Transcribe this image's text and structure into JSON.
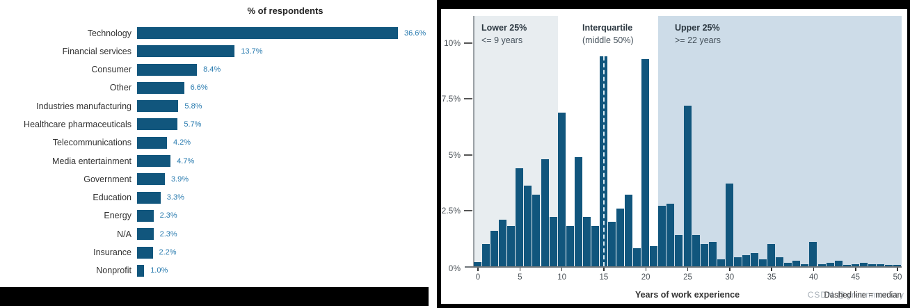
{
  "colors": {
    "bar": "#11567d",
    "value_label": "#2679ae",
    "lower_region": "#e8edf0",
    "middle_region": "#ffffff",
    "upper_region": "#cddce8",
    "median_dash": "#d8eaf3",
    "panel_border": "#000000"
  },
  "chart_data": [
    {
      "id": "industry-respondents",
      "type": "bar",
      "orientation": "horizontal",
      "title": "% of respondents",
      "unit": "%",
      "grid": false,
      "xlim": [
        0,
        40
      ],
      "categories": [
        "Technology",
        "Financial services",
        "Consumer",
        "Other",
        "Industries manufacturing",
        "Healthcare pharmaceuticals",
        "Telecommunications",
        "Media entertainment",
        "Government",
        "Education",
        "Energy",
        "N/A",
        "Insurance",
        "Nonprofit"
      ],
      "values": [
        36.6,
        13.7,
        8.4,
        6.6,
        5.8,
        5.7,
        4.2,
        4.7,
        3.9,
        3.3,
        2.3,
        2.3,
        2.2,
        1.0
      ],
      "value_labels": [
        "36.6%",
        "13.7%",
        "8.4%",
        "6.6%",
        "5.8%",
        "5.7%",
        "4.2%",
        "4.7%",
        "3.9%",
        "3.3%",
        "2.3%",
        "2.3%",
        "2.2%",
        "1.0%"
      ]
    },
    {
      "id": "work-experience-distribution",
      "type": "bar",
      "subtype": "histogram",
      "xlabel": "Years of work experience",
      "ylabel": "",
      "ylim": [
        0,
        11.2
      ],
      "xlim": [
        0,
        50
      ],
      "grid": false,
      "y_ticks": [
        {
          "label": "10%",
          "value": 10
        },
        {
          "label": "7.5%",
          "value": 7.5
        },
        {
          "label": "5%",
          "value": 5
        },
        {
          "label": "2.5%",
          "value": 2.5
        },
        {
          "label": "0%",
          "value": 0
        }
      ],
      "x_ticks": [
        0,
        5,
        10,
        15,
        20,
        25,
        30,
        35,
        40,
        45,
        50
      ],
      "x": [
        0,
        1,
        2,
        3,
        4,
        5,
        6,
        7,
        8,
        9,
        10,
        11,
        12,
        13,
        14,
        15,
        16,
        17,
        18,
        19,
        20,
        21,
        22,
        23,
        24,
        25,
        26,
        27,
        28,
        29,
        30,
        31,
        32,
        33,
        34,
        35,
        36,
        37,
        38,
        39,
        40,
        41,
        42,
        43,
        44,
        45,
        46,
        47,
        48,
        49,
        50
      ],
      "values": [
        0.2,
        1.0,
        1.6,
        2.1,
        1.8,
        4.4,
        3.6,
        3.2,
        4.8,
        2.2,
        6.9,
        1.8,
        4.9,
        2.2,
        1.8,
        9.4,
        2.0,
        2.6,
        3.2,
        0.8,
        9.3,
        0.9,
        2.7,
        2.8,
        1.4,
        7.2,
        1.4,
        1.0,
        1.1,
        0.3,
        3.7,
        0.4,
        0.5,
        0.6,
        0.3,
        1.0,
        0.4,
        0.15,
        0.25,
        0.1,
        1.1,
        0.1,
        0.15,
        0.25,
        0.05,
        0.1,
        0.15,
        0.1,
        0.1,
        0.05,
        0.05
      ],
      "median": 15,
      "median_note": "Dashed line = median",
      "watermark": "CSDN @greenmonkey",
      "regions": [
        {
          "title": "Lower 25%",
          "subtitle": "<= 9 years",
          "x_start": 0,
          "x_end": 9,
          "shaded": true
        },
        {
          "title": "Interquartile",
          "subtitle": "(middle 50%)",
          "x_start": 10,
          "x_end": 21,
          "shaded": false
        },
        {
          "title": "Upper 25%",
          "subtitle": ">= 22 years",
          "x_start": 22,
          "x_end": 50,
          "shaded": true
        }
      ]
    }
  ]
}
